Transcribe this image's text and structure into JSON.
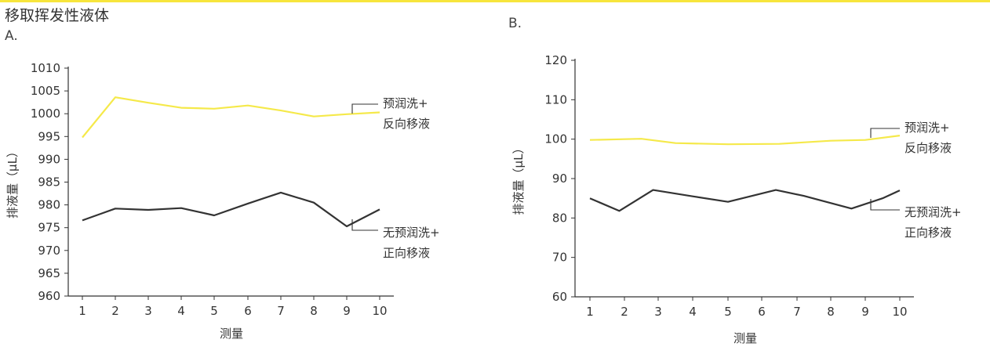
{
  "page": {
    "title": "移取挥发性液体",
    "accent": "#f7e53c"
  },
  "chart_data": [
    {
      "panel": "A.",
      "type": "line",
      "xlabel": "测量",
      "ylabel": "排液量（µL）",
      "x": [
        1,
        2,
        3,
        4,
        5,
        6,
        7,
        8,
        9,
        10
      ],
      "xlim": [
        0.5,
        10.5
      ],
      "ylim": [
        960,
        1010
      ],
      "yticks": [
        960,
        965,
        970,
        975,
        980,
        985,
        990,
        995,
        1000,
        1005,
        1010
      ],
      "xticks": [
        1,
        2,
        3,
        4,
        5,
        6,
        7,
        8,
        9,
        10
      ],
      "grid": false,
      "series": [
        {
          "name_lines": [
            "预润洗+",
            "反向移液"
          ],
          "color": "#f5e94a",
          "points": [
            [
              1,
              994.8
            ],
            [
              2,
              1003.6
            ],
            [
              3,
              1002.4
            ],
            [
              4,
              1001.3
            ],
            [
              5,
              1001.1
            ],
            [
              6,
              1001.8
            ],
            [
              7,
              1000.7
            ],
            [
              8,
              999.4
            ],
            [
              9,
              999.9
            ],
            [
              10,
              1000.3
            ]
          ]
        },
        {
          "name_lines": [
            "无预润洗+",
            "正向移液"
          ],
          "color": "#333333",
          "points": [
            [
              1,
              976.6
            ],
            [
              2,
              979.2
            ],
            [
              3,
              978.9
            ],
            [
              4,
              979.3
            ],
            [
              5,
              977.7
            ],
            [
              6,
              980.3
            ],
            [
              7,
              982.7
            ],
            [
              8,
              980.5
            ],
            [
              9,
              975.3
            ],
            [
              10,
              979.0
            ]
          ]
        }
      ]
    },
    {
      "panel": "B.",
      "type": "line",
      "xlabel": "测量",
      "ylabel": "排液量（µL）",
      "x": [
        1,
        2,
        3,
        4,
        5,
        6,
        7,
        8,
        9,
        10
      ],
      "xlim": [
        0.5,
        10.5
      ],
      "ylim": [
        60,
        120
      ],
      "yticks": [
        60,
        70,
        80,
        90,
        100,
        110,
        120
      ],
      "xticks": [
        1,
        2,
        3,
        4,
        5,
        6,
        7,
        8,
        9,
        10
      ],
      "grid": false,
      "series": [
        {
          "name_lines": [
            "预润洗+",
            "反向移液"
          ],
          "color": "#f5e94a",
          "points": [
            [
              1,
              99.8
            ],
            [
              2,
              100.0
            ],
            [
              2.5,
              100.1
            ],
            [
              3.5,
              99.0
            ],
            [
              5,
              98.7
            ],
            [
              6.5,
              98.8
            ],
            [
              8,
              99.6
            ],
            [
              9,
              99.8
            ],
            [
              10,
              100.9
            ]
          ]
        },
        {
          "name_lines": [
            "无预润洗+",
            "正向移液"
          ],
          "color": "#333333",
          "points": [
            [
              1,
              85.0
            ],
            [
              1.85,
              81.8
            ],
            [
              2.85,
              87.1
            ],
            [
              4,
              85.5
            ],
            [
              5,
              84.1
            ],
            [
              6.4,
              87.1
            ],
            [
              7.2,
              85.6
            ],
            [
              8.6,
              82.4
            ],
            [
              9.5,
              85.0
            ],
            [
              10,
              87.0
            ]
          ]
        }
      ]
    }
  ]
}
